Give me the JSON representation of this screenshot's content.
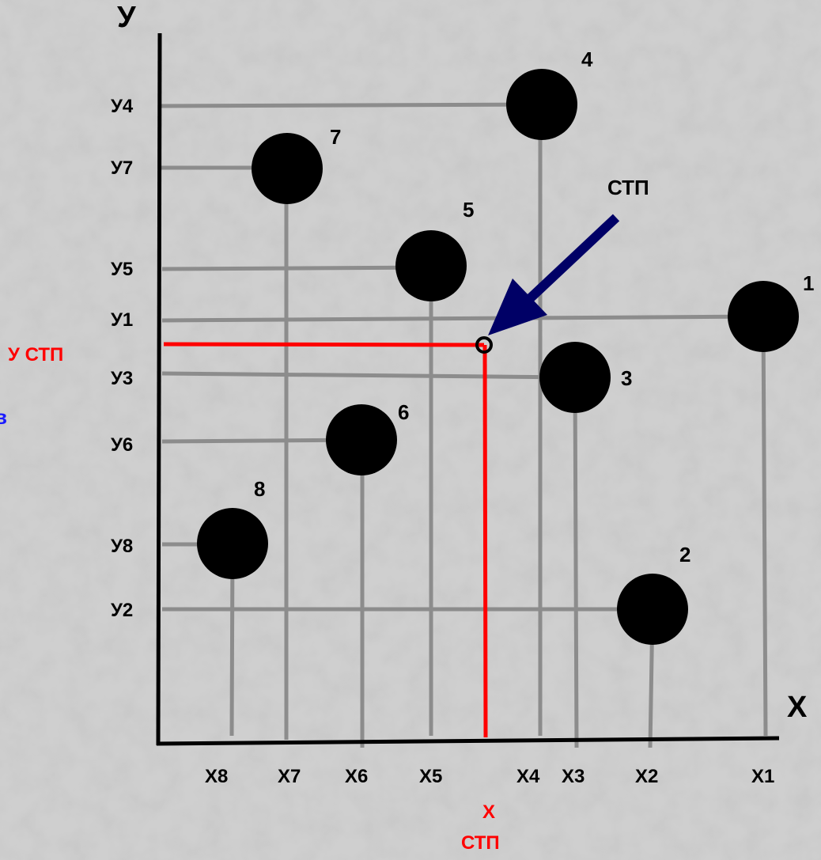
{
  "axes": {
    "x_label": "X",
    "y_label": "У"
  },
  "points": [
    {
      "id": "1",
      "x_label": "X1",
      "y_label": "У1"
    },
    {
      "id": "2",
      "x_label": "X2",
      "y_label": "У2"
    },
    {
      "id": "3",
      "x_label": "X3",
      "y_label": "У3"
    },
    {
      "id": "4",
      "x_label": "X4",
      "y_label": "У4"
    },
    {
      "id": "5",
      "x_label": "X5",
      "y_label": "У5"
    },
    {
      "id": "6",
      "x_label": "X6",
      "y_label": "У6"
    },
    {
      "id": "7",
      "x_label": "X7",
      "y_label": "У7"
    },
    {
      "id": "8",
      "x_label": "X8",
      "y_label": "У8"
    }
  ],
  "center": {
    "arrow_label": "СТП",
    "y_label": "У СТП",
    "x_label_line1": "X",
    "x_label_line2": "СТП"
  },
  "edge_fragment": "в",
  "colors": {
    "background": "#cfcfcf",
    "points": "#000000",
    "grid_lines": "#8c8c8c",
    "center_lines": "#ff0000",
    "arrow": "#000066",
    "edge_fragment": "#1a1aff"
  }
}
